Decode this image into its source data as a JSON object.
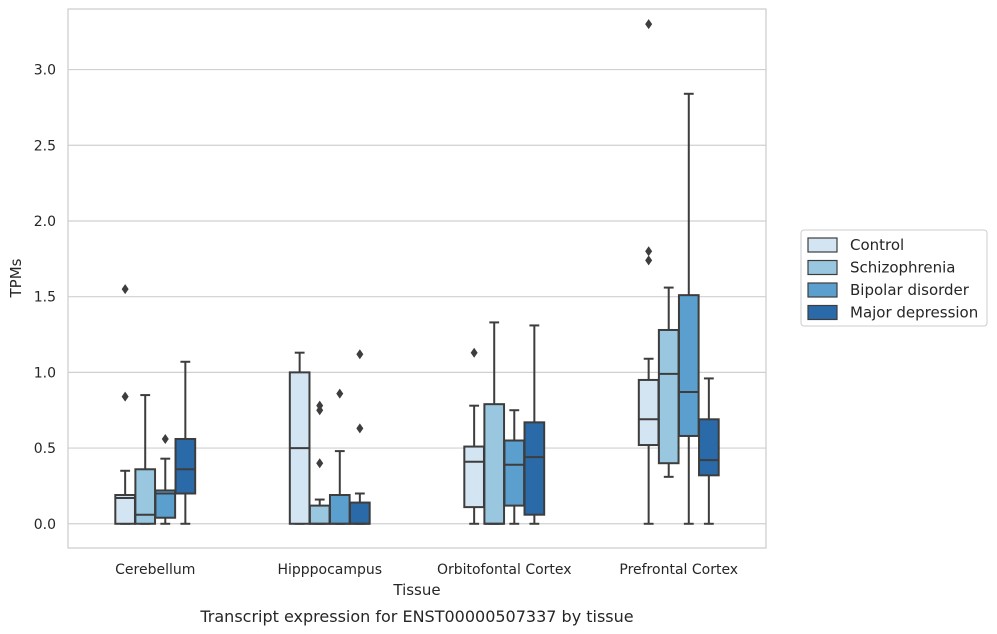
{
  "chart_data": {
    "type": "box",
    "title": "",
    "caption": "Transcript expression for ENST00000507337 by tissue",
    "xlabel": "Tissue",
    "ylabel": "TPMs",
    "ylim": [
      -0.16,
      3.4
    ],
    "yticks": [
      "0.0",
      "0.5",
      "1.0",
      "1.5",
      "2.0",
      "2.5",
      "3.0"
    ],
    "grid": "horizontal",
    "legend_position": "right",
    "categories": [
      "Cerebellum",
      "Hipppocampus",
      "Orbitofontal Cortex",
      "Prefrontal Cortex"
    ],
    "series": [
      {
        "name": "Control",
        "color": "#d3e4f3",
        "boxes": [
          {
            "whislo": 0,
            "q1": 0,
            "med": 0.17,
            "q3": 0.19,
            "whishi": 0.35,
            "fliers": [
              0.84,
              1.55
            ]
          },
          {
            "whislo": 0,
            "q1": 0,
            "med": 0.5,
            "q3": 1.0,
            "whishi": 1.13,
            "fliers": []
          },
          {
            "whislo": 0,
            "q1": 0.11,
            "med": 0.41,
            "q3": 0.51,
            "whishi": 0.78,
            "fliers": [
              1.13
            ]
          },
          {
            "whislo": 0,
            "q1": 0.52,
            "med": 0.69,
            "q3": 0.95,
            "whishi": 1.09,
            "fliers": [
              1.74,
              1.8,
              3.3
            ]
          }
        ]
      },
      {
        "name": "Schizophrenia",
        "color": "#9ac7e0",
        "boxes": [
          {
            "whislo": 0,
            "q1": 0,
            "med": 0.06,
            "q3": 0.36,
            "whishi": 0.85,
            "fliers": []
          },
          {
            "whislo": 0,
            "q1": 0,
            "med": 0,
            "q3": 0.12,
            "whishi": 0.16,
            "fliers": [
              0.4,
              0.75,
              0.78
            ]
          },
          {
            "whislo": 0,
            "q1": 0,
            "med": 0,
            "q3": 0.79,
            "whishi": 1.33,
            "fliers": []
          },
          {
            "whislo": 0.31,
            "q1": 0.4,
            "med": 0.99,
            "q3": 1.28,
            "whishi": 1.56,
            "fliers": []
          }
        ]
      },
      {
        "name": "Bipolar disorder",
        "color": "#5b9fce",
        "boxes": [
          {
            "whislo": 0,
            "q1": 0.04,
            "med": 0.2,
            "q3": 0.22,
            "whishi": 0.43,
            "fliers": [
              0.56
            ]
          },
          {
            "whislo": 0,
            "q1": 0,
            "med": 0,
            "q3": 0.19,
            "whishi": 0.48,
            "fliers": [
              0.86
            ]
          },
          {
            "whislo": 0,
            "q1": 0.12,
            "med": 0.39,
            "q3": 0.55,
            "whishi": 0.75,
            "fliers": []
          },
          {
            "whislo": 0,
            "q1": 0.58,
            "med": 0.87,
            "q3": 1.51,
            "whishi": 2.84,
            "fliers": []
          }
        ]
      },
      {
        "name": "Major depression",
        "color": "#2b6aa8",
        "boxes": [
          {
            "whislo": 0,
            "q1": 0.2,
            "med": 0.36,
            "q3": 0.56,
            "whishi": 1.07,
            "fliers": []
          },
          {
            "whislo": 0,
            "q1": 0,
            "med": 0,
            "q3": 0.14,
            "whishi": 0.2,
            "fliers": [
              0.63,
              1.12
            ]
          },
          {
            "whislo": 0,
            "q1": 0.06,
            "med": 0.44,
            "q3": 0.67,
            "whishi": 1.31,
            "fliers": []
          },
          {
            "whislo": 0,
            "q1": 0.32,
            "med": 0.42,
            "q3": 0.69,
            "whishi": 0.96,
            "fliers": []
          }
        ]
      }
    ]
  }
}
